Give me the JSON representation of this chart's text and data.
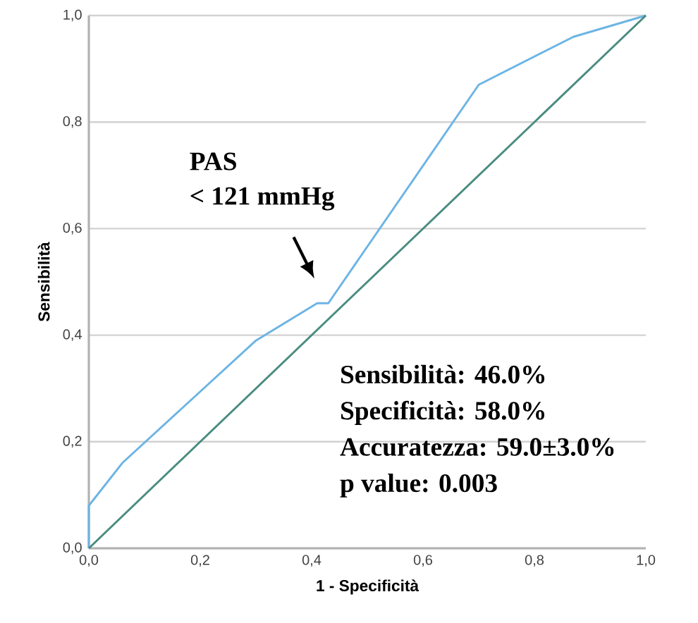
{
  "chart_data": {
    "type": "line",
    "xlabel": "1 - Specificità",
    "ylabel": "Sensibilità",
    "series": [
      {
        "color": "#6cb4e4",
        "x": [
          0,
          0,
          0.06,
          0.3,
          0.41,
          0.43,
          0.7,
          0.87,
          1
        ],
        "values": [
          0,
          0.08,
          0.16,
          0.39,
          0.46,
          0.46,
          0.87,
          0.96,
          1
        ]
      },
      {
        "color": "#4a8c80",
        "x": [
          0,
          1
        ],
        "values": [
          0,
          1
        ]
      }
    ],
    "xlim": [
      0,
      1
    ],
    "ylim": [
      0,
      1
    ],
    "xticks": [
      {
        "value": 0,
        "label": "0,0"
      },
      {
        "value": 0.2,
        "label": "0,2"
      },
      {
        "value": 0.4,
        "label": "0,4"
      },
      {
        "value": 0.6,
        "label": "0,6"
      },
      {
        "value": 0.8,
        "label": "0,8"
      },
      {
        "value": 1,
        "label": "1,0"
      }
    ],
    "yticks": [
      {
        "value": 0,
        "label": "0,0"
      },
      {
        "value": 0.2,
        "label": "0,2"
      },
      {
        "value": 0.4,
        "label": "0,4"
      },
      {
        "value": 0.6,
        "label": "0,6"
      },
      {
        "value": 0.8,
        "label": "0,8"
      },
      {
        "value": 1,
        "label": "1,0"
      }
    ],
    "grid": "y",
    "marker": "none",
    "line_style": "solid",
    "annotations": [
      "PAS",
      "< 121 mmHg",
      "Sensibilità: 46.0%",
      "Specificità: 58.0%",
      "Accuratezza: 59.0±3.0%",
      "p value: 0.003"
    ]
  }
}
